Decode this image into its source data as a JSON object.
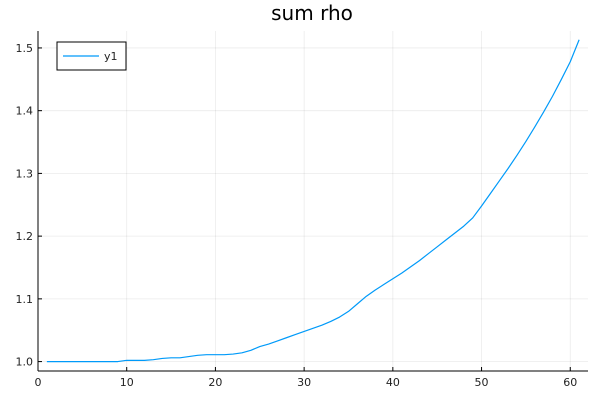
{
  "chart_data": {
    "type": "line",
    "title": "sum rho",
    "xlabel": "",
    "ylabel": "",
    "xlim": [
      0,
      62
    ],
    "ylim": [
      0.985,
      1.527
    ],
    "xticks": [
      0,
      10,
      20,
      30,
      40,
      50,
      60
    ],
    "yticks": [
      1.0,
      1.1,
      1.2,
      1.3,
      1.4,
      1.5
    ],
    "ytick_labels": [
      "1.0",
      "1.1",
      "1.2",
      "1.3",
      "1.4",
      "1.5"
    ],
    "grid": true,
    "legend": "top-left",
    "series": [
      {
        "name": "y1",
        "color": "#009af9",
        "x": [
          1,
          2,
          3,
          4,
          5,
          6,
          7,
          8,
          9,
          10,
          11,
          12,
          13,
          14,
          15,
          16,
          17,
          18,
          19,
          20,
          21,
          22,
          23,
          24,
          25,
          26,
          27,
          28,
          29,
          30,
          31,
          32,
          33,
          34,
          35,
          36,
          37,
          38,
          39,
          40,
          41,
          42,
          43,
          44,
          45,
          46,
          47,
          48,
          49,
          50,
          51,
          52,
          53,
          54,
          55,
          56,
          57,
          58,
          59,
          60,
          61
        ],
        "values": [
          1.0,
          1.0,
          1.0,
          1.0,
          1.0,
          1.0,
          1.0,
          1.0,
          1.0,
          1.002,
          1.002,
          1.002,
          1.003,
          1.005,
          1.006,
          1.006,
          1.008,
          1.01,
          1.011,
          1.011,
          1.011,
          1.012,
          1.014,
          1.018,
          1.024,
          1.028,
          1.033,
          1.038,
          1.043,
          1.048,
          1.053,
          1.058,
          1.064,
          1.071,
          1.08,
          1.092,
          1.104,
          1.114,
          1.123,
          1.132,
          1.141,
          1.151,
          1.161,
          1.172,
          1.183,
          1.194,
          1.205,
          1.216,
          1.229,
          1.248,
          1.268,
          1.288,
          1.308,
          1.329,
          1.351,
          1.374,
          1.398,
          1.423,
          1.45,
          1.478,
          1.513
        ]
      }
    ]
  }
}
